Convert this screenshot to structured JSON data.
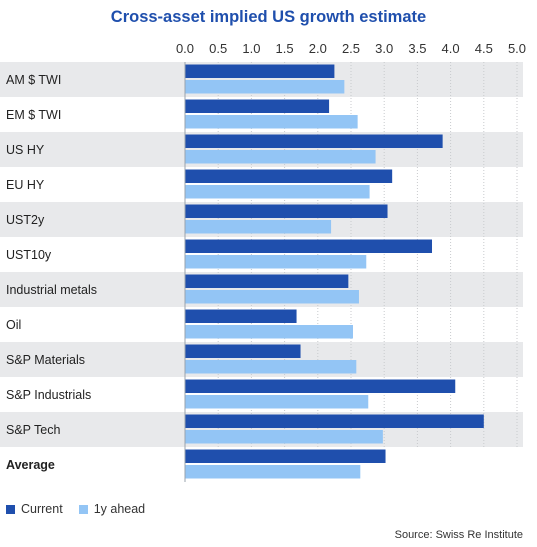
{
  "colors": {
    "current": "#1f4fad",
    "ahead": "#93c5f5",
    "title": "#1f4fad",
    "band": "#e8e9eb",
    "grid": "#c8cacd"
  },
  "legend": {
    "current": "Current",
    "ahead": "1y ahead"
  },
  "source": "Source: Swiss Re Institute",
  "chart_data": {
    "type": "bar",
    "orientation": "horizontal",
    "title": "Cross-asset implied US growth estimate",
    "xlabel": "",
    "ylabel": "",
    "xlim": [
      0,
      5.0
    ],
    "ticks": [
      "0.0",
      "0.5",
      "1.0",
      "1.5",
      "2.0",
      "2.5",
      "3.0",
      "3.5",
      "4.0",
      "4.5",
      "5.0"
    ],
    "grid": true,
    "legend_position": "bottom-left",
    "categories": [
      "AM $ TWI",
      "EM $ TWI",
      "US HY",
      "EU HY",
      "UST2y",
      "UST10y",
      "Industrial metals",
      "Oil",
      "S&P Materials",
      "S&P Industrials",
      "S&P Tech",
      "Average"
    ],
    "bold_categories": [
      "Average"
    ],
    "series": [
      {
        "name": "Current",
        "values": [
          2.25,
          2.17,
          3.88,
          3.12,
          3.05,
          3.72,
          2.46,
          1.68,
          1.74,
          4.07,
          4.5,
          3.02
        ]
      },
      {
        "name": "1y ahead",
        "values": [
          2.4,
          2.6,
          2.87,
          2.78,
          2.2,
          2.73,
          2.62,
          2.53,
          2.58,
          2.76,
          2.98,
          2.64
        ]
      }
    ]
  }
}
